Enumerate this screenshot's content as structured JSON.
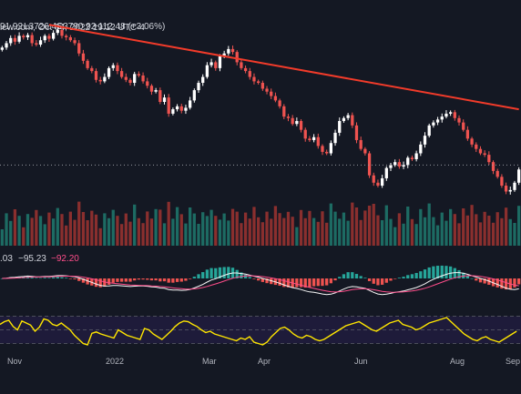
{
  "header": {
    "source": "iew.com, Oct 04, 2022 19:12 UTC-4",
    "ohlc": {
      "open": "91.92",
      "low": "L3726.46",
      "close": "C3790.92",
      "change": "+112.48 (+3.06%)"
    }
  },
  "macd": {
    "label_a": ".03",
    "label_b": "−95.23",
    "label_c": "−92.20"
  },
  "x_axis": {
    "ticks": [
      "Nov",
      "2022",
      "Mar",
      "Apr",
      "Jun",
      "Aug",
      "Sep"
    ]
  },
  "colors": {
    "bg": "#141823",
    "up": "#ffffff",
    "down": "#ef5350",
    "trend": "#f23b2a",
    "rsi": "#ffe600",
    "hist_pos": "#26a69a",
    "hist_neg": "#ef5350",
    "macd_line": "#f8f8f8",
    "signal": "#ff4d8a",
    "grid": "#1f2330"
  },
  "chart_data": {
    "type": "candlestick",
    "price_closes": [
      4620,
      4650,
      4685,
      4660,
      4700,
      4690,
      4705,
      4650,
      4640,
      4670,
      4700,
      4680,
      4720,
      4740,
      4700,
      4690,
      4670,
      4650,
      4580,
      4530,
      4480,
      4460,
      4400,
      4390,
      4420,
      4480,
      4500,
      4460,
      4420,
      4400,
      4380,
      4440,
      4430,
      4390,
      4360,
      4320,
      4330,
      4250,
      4280,
      4170,
      4200,
      4220,
      4190,
      4210,
      4260,
      4330,
      4380,
      4420,
      4500,
      4520,
      4480,
      4560,
      4580,
      4610,
      4590,
      4520,
      4480,
      4460,
      4420,
      4390,
      4380,
      4340,
      4320,
      4290,
      4260,
      4220,
      4150,
      4140,
      4100,
      4120,
      4060,
      4000,
      3990,
      4010,
      3950,
      3910,
      3900,
      3970,
      4040,
      4120,
      4140,
      4160,
      4090,
      3990,
      3930,
      3900,
      3750,
      3700,
      3680,
      3730,
      3800,
      3820,
      3840,
      3810,
      3820,
      3870,
      3860,
      3900,
      3960,
      4020,
      4090,
      4110,
      4130,
      4150,
      4170,
      4180,
      4140,
      4110,
      4060,
      4000,
      3960,
      3930,
      3900,
      3890,
      3840,
      3780,
      3740,
      3680,
      3640,
      3650,
      3700,
      3790
    ],
    "price_ylim": [
      3550,
      4820
    ],
    "trendline": {
      "from": [
        11,
        4775
      ],
      "to": [
        121,
        4200
      ]
    },
    "dotted_level": 3820,
    "rsi_values": [
      58,
      62,
      64,
      55,
      50,
      63,
      60,
      57,
      48,
      54,
      66,
      64,
      58,
      56,
      60,
      55,
      50,
      42,
      36,
      30,
      28,
      45,
      47,
      44,
      42,
      40,
      38,
      50,
      46,
      42,
      40,
      38,
      36,
      52,
      50,
      44,
      40,
      36,
      42,
      48,
      55,
      60,
      63,
      62,
      58,
      55,
      50,
      46,
      48,
      44,
      42,
      40,
      38,
      36,
      34,
      38,
      36,
      40,
      32,
      30,
      28,
      32,
      40,
      46,
      52,
      54,
      50,
      44,
      40,
      38,
      42,
      40,
      36,
      34,
      36,
      40,
      44,
      48,
      52,
      56,
      58,
      60,
      62,
      58,
      54,
      50,
      48,
      52,
      56,
      60,
      62,
      64,
      58,
      56,
      54,
      50,
      52,
      56,
      60,
      62,
      64,
      66,
      68,
      62,
      56,
      50,
      44,
      40,
      36,
      34,
      38,
      40,
      36,
      34,
      32,
      36,
      40,
      44,
      48
    ]
  }
}
